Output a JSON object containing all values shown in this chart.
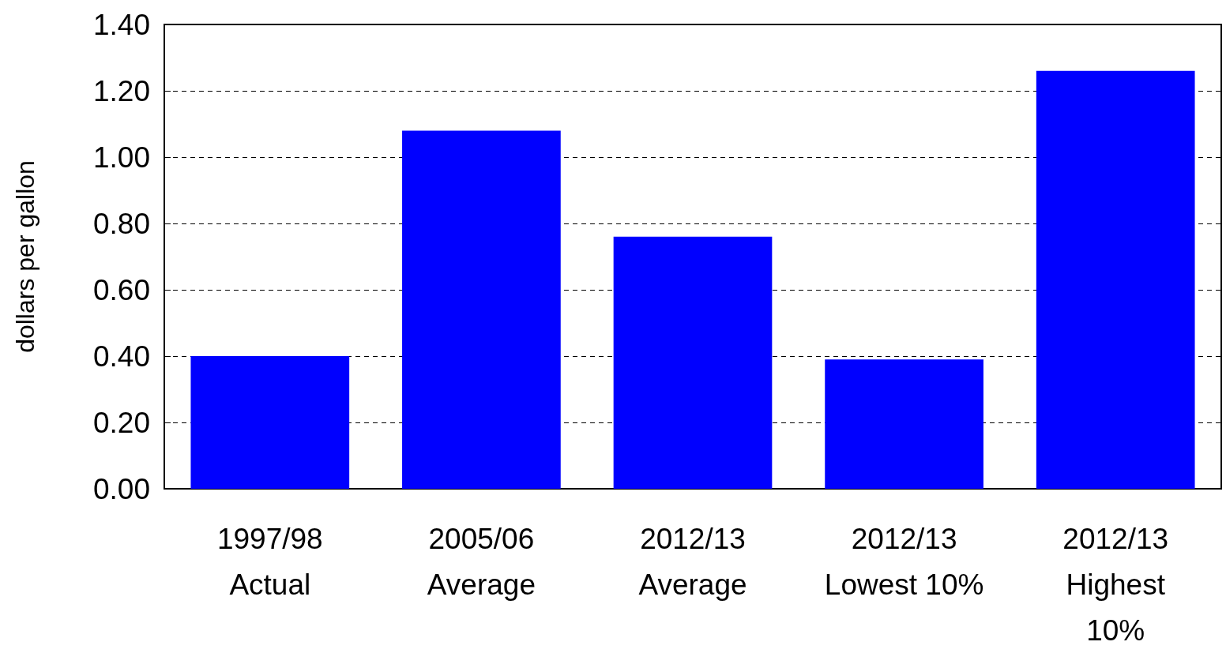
{
  "chart_data": {
    "type": "bar",
    "ylabel": "dollars per gallon",
    "categories": [
      "1997/98\nActual",
      "2005/06\nAverage",
      "2012/13\nAverage",
      "2012/13\nLowest 10%",
      "2012/13\nHighest\n10%"
    ],
    "values": [
      0.4,
      1.08,
      0.76,
      0.39,
      1.26
    ],
    "color": "#0000ff",
    "ylim": [
      0,
      1.4
    ],
    "yticks": [
      {
        "value": 0,
        "label": "0.00"
      },
      {
        "value": 0.2,
        "label": "0.20"
      },
      {
        "value": 0.4,
        "label": "0.40"
      },
      {
        "value": 0.6,
        "label": "0.60"
      },
      {
        "value": 0.8,
        "label": "0.80"
      },
      {
        "value": 1.0,
        "label": "1.00"
      },
      {
        "value": 1.2,
        "label": "1.20"
      },
      {
        "value": 1.4,
        "label": "1.40"
      }
    ],
    "grid": "y"
  }
}
